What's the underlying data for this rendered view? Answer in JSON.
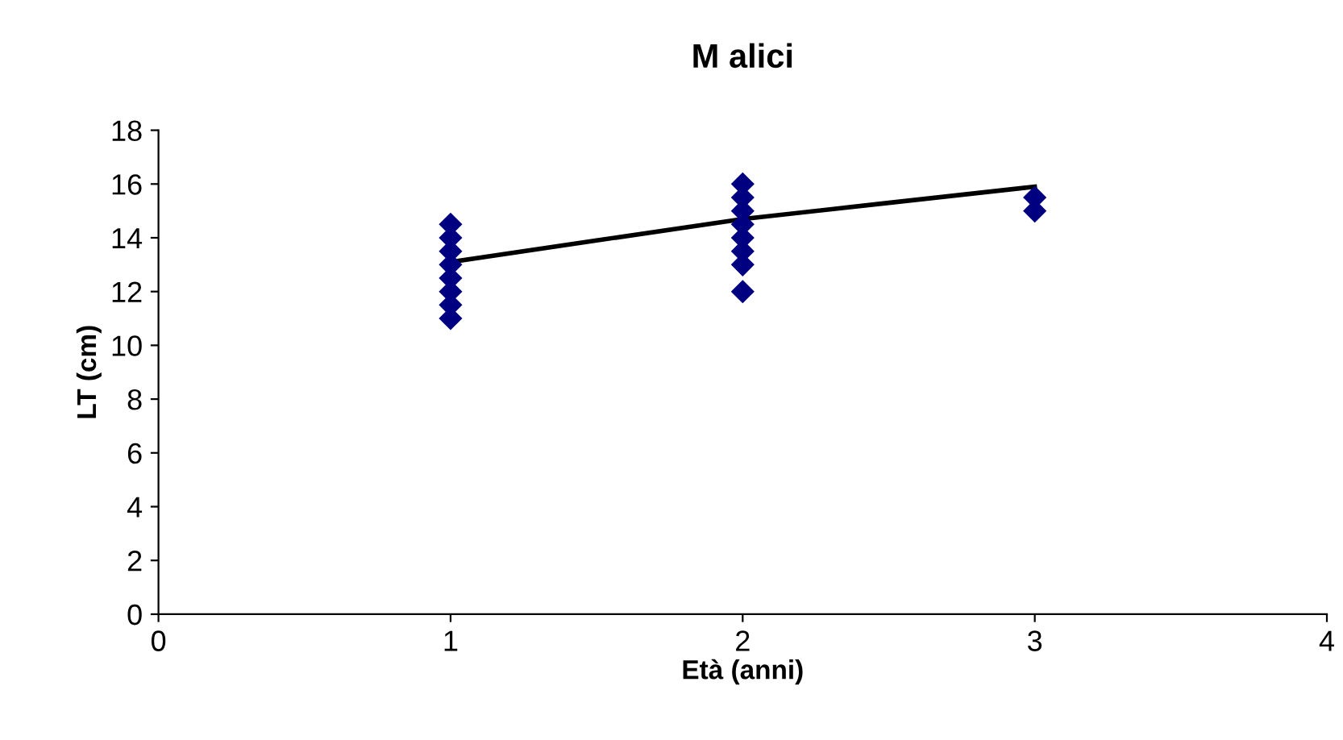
{
  "chart_data": {
    "type": "scatter",
    "title": "M alici",
    "xlabel": "Età (anni)",
    "ylabel": "LT (cm)",
    "xlim": [
      0,
      4
    ],
    "xticks": [
      0,
      1,
      2,
      3,
      4
    ],
    "ylim": [
      0,
      18
    ],
    "yticks": [
      0,
      2,
      4,
      6,
      8,
      10,
      12,
      14,
      16,
      18
    ],
    "grid": false,
    "legend": false,
    "marker": "diamond",
    "series": [
      {
        "color": "#000080",
        "x": [
          1,
          1,
          1,
          1,
          1,
          1,
          1,
          1,
          2,
          2,
          2,
          2,
          2,
          2,
          2,
          2,
          3,
          3
        ],
        "values": [
          11,
          11.5,
          12,
          12.5,
          13,
          13.5,
          14,
          14.5,
          12,
          13,
          13.5,
          14,
          14.5,
          15,
          15.5,
          16,
          15,
          15.5
        ]
      },
      {
        "type": "line",
        "color": "#000000",
        "marker": "none",
        "line_style": "solid",
        "x": [
          1,
          1.5,
          2,
          2.5,
          3
        ],
        "values": [
          13.1,
          13.9,
          14.7,
          15.3,
          15.9
        ]
      }
    ]
  }
}
